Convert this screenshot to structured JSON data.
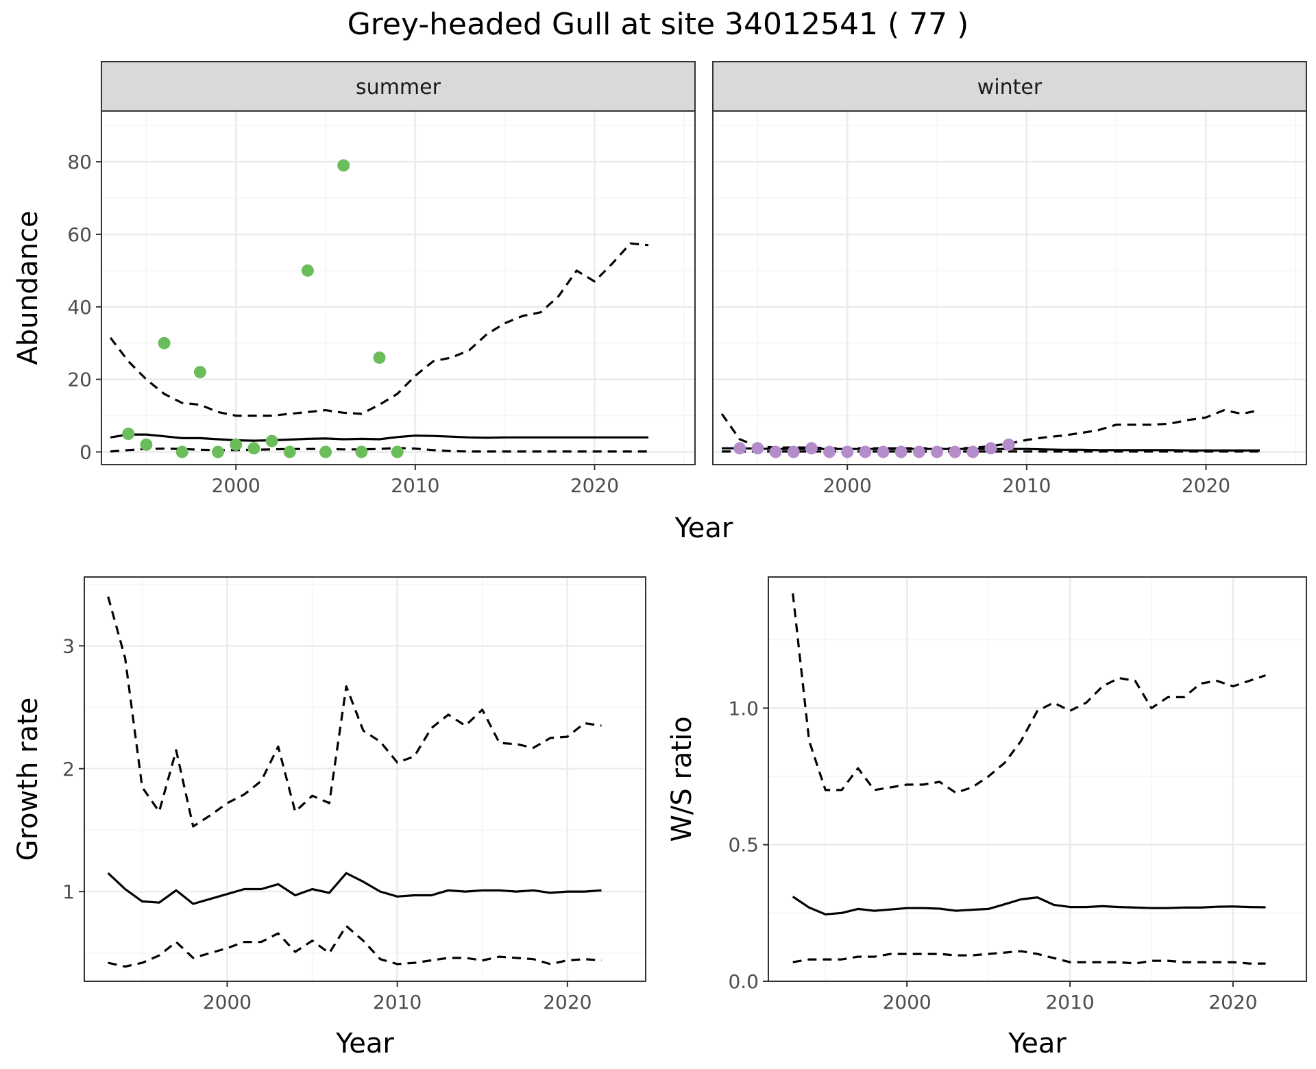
{
  "title": "Grey-headed Gull at site 34012541 ( 77 )",
  "colors": {
    "summer_points": "#6abd5a",
    "winter_points": "#b58cca",
    "line": "#000000",
    "strip_bg": "#d9d9d9",
    "grid_major": "#ebebeb",
    "grid_minor": "#f5f5f5"
  },
  "chart_data": [
    {
      "type": "line",
      "panel": "abundance",
      "facets": [
        "summer",
        "winter"
      ],
      "xlabel": "Year",
      "ylabel": "Abundance",
      "xlim": [
        1992.5,
        2025.6
      ],
      "ylim": [
        -3.5,
        94
      ],
      "x_ticks": [
        2000,
        2010,
        2020
      ],
      "y_ticks": [
        0,
        20,
        40,
        60,
        80
      ],
      "grid": true,
      "series": [
        {
          "facet": "summer",
          "style": "solid",
          "x": [
            1993,
            1994,
            1995,
            1996,
            1997,
            1998,
            1999,
            2000,
            2001,
            2002,
            2003,
            2004,
            2005,
            2006,
            2007,
            2008,
            2009,
            2010,
            2011,
            2012,
            2013,
            2014,
            2015,
            2016,
            2017,
            2018,
            2019,
            2020,
            2021,
            2022,
            2023
          ],
          "values": [
            4,
            4.8,
            4.8,
            4.3,
            3.8,
            3.8,
            3.5,
            3.2,
            3.1,
            3.2,
            3.4,
            3.6,
            3.7,
            3.5,
            3.6,
            3.5,
            4.1,
            4.5,
            4.4,
            4.2,
            4,
            3.9,
            4,
            4,
            4,
            4,
            4,
            4,
            4,
            4,
            4
          ]
        },
        {
          "facet": "summer",
          "style": "dashed",
          "x": [
            1993,
            1994,
            1995,
            1996,
            1997,
            1998,
            1999,
            2000,
            2001,
            2002,
            2003,
            2004,
            2005,
            2006,
            2007,
            2008,
            2009,
            2010,
            2011,
            2012,
            2013,
            2014,
            2015,
            2016,
            2017,
            2018,
            2019,
            2020,
            2021,
            2022,
            2023
          ],
          "values": [
            31.5,
            25,
            20,
            16,
            13.5,
            13,
            11,
            10,
            10,
            10,
            10.5,
            11,
            11.5,
            10.8,
            10.5,
            13,
            16,
            21,
            25,
            26,
            28,
            32.5,
            35.5,
            37.5,
            38.5,
            43,
            50,
            47,
            52,
            57.5,
            57
          ]
        },
        {
          "facet": "summer",
          "style": "dashed",
          "x": [
            1993,
            1994,
            1995,
            1996,
            1997,
            1998,
            1999,
            2000,
            2001,
            2002,
            2003,
            2004,
            2005,
            2006,
            2007,
            2008,
            2009,
            2010,
            2011,
            2012,
            2013,
            2014,
            2015,
            2016,
            2017,
            2018,
            2019,
            2020,
            2021,
            2022,
            2023
          ],
          "values": [
            0.1,
            0.5,
            0.8,
            0.9,
            0.8,
            0.6,
            0.5,
            0.5,
            0.6,
            0.7,
            0.8,
            0.8,
            0.8,
            0.7,
            0.7,
            0.8,
            1.1,
            0.9,
            0.5,
            0.2,
            0.1,
            0.1,
            0.1,
            0.1,
            0.1,
            0.1,
            0.1,
            0.1,
            0.1,
            0.1,
            0.1
          ]
        },
        {
          "facet": "summer",
          "style": "points",
          "x": [
            1994,
            1995,
            1996,
            1997,
            1998,
            1999,
            2000,
            2001,
            2002,
            2003,
            2004,
            2005,
            2006,
            2007,
            2008,
            2009
          ],
          "values": [
            5,
            2,
            30,
            0,
            22,
            0,
            2,
            1,
            3,
            0,
            50,
            0,
            79,
            0,
            26,
            0
          ]
        },
        {
          "facet": "winter",
          "style": "solid",
          "x": [
            1993,
            1994,
            1995,
            1996,
            1997,
            1998,
            1999,
            2000,
            2001,
            2002,
            2003,
            2004,
            2005,
            2006,
            2007,
            2008,
            2009,
            2010,
            2011,
            2012,
            2013,
            2014,
            2015,
            2016,
            2017,
            2018,
            2019,
            2020,
            2021,
            2022,
            2023
          ],
          "values": [
            1,
            1,
            0.9,
            0.8,
            0.8,
            0.8,
            0.8,
            0.8,
            0.8,
            0.8,
            0.8,
            0.8,
            0.8,
            0.8,
            0.8,
            0.8,
            0.8,
            0.8,
            0.7,
            0.6,
            0.6,
            0.5,
            0.5,
            0.5,
            0.5,
            0.5,
            0.4,
            0.4,
            0.4,
            0.4,
            0.4
          ]
        },
        {
          "facet": "winter",
          "style": "dashed",
          "x": [
            1993,
            1994,
            1995,
            1996,
            1997,
            1998,
            1999,
            2000,
            2001,
            2002,
            2003,
            2004,
            2005,
            2006,
            2007,
            2008,
            2009,
            2010,
            2011,
            2012,
            2013,
            2014,
            2015,
            2016,
            2017,
            2018,
            2019,
            2020,
            2021,
            2022,
            2023
          ],
          "values": [
            10.5,
            3.5,
            1.5,
            1.2,
            1.2,
            1.2,
            1,
            1,
            1,
            1,
            1,
            1,
            1,
            1,
            1.1,
            1.6,
            2.3,
            3.3,
            4,
            4.5,
            5.2,
            6,
            7.5,
            7.5,
            7.5,
            7.8,
            8.8,
            9.5,
            11.5,
            10.5,
            11.5
          ]
        },
        {
          "facet": "winter",
          "style": "dashed",
          "x": [
            1993,
            1994,
            1995,
            1996,
            1997,
            1998,
            1999,
            2000,
            2001,
            2002,
            2003,
            2004,
            2005,
            2006,
            2007,
            2008,
            2009,
            2010,
            2011,
            2012,
            2013,
            2014,
            2015,
            2016,
            2017,
            2018,
            2019,
            2020,
            2021,
            2022,
            2023
          ],
          "values": [
            0.1,
            0.1,
            0.1,
            0.1,
            0.1,
            0.1,
            0.1,
            0.1,
            0.1,
            0.1,
            0.1,
            0.1,
            0.1,
            0.1,
            0.1,
            0.1,
            0.1,
            0.1,
            0.1,
            0.1,
            0.1,
            0.1,
            0.1,
            0.1,
            0.1,
            0.1,
            0.1,
            0.1,
            0.1,
            0.1,
            0.1
          ]
        },
        {
          "facet": "winter",
          "style": "points",
          "x": [
            1994,
            1995,
            1996,
            1997,
            1998,
            1999,
            2000,
            2001,
            2002,
            2003,
            2004,
            2005,
            2006,
            2007,
            2008,
            2009
          ],
          "values": [
            1,
            1,
            0,
            0,
            1,
            0,
            0,
            0,
            0,
            0,
            0,
            0,
            0,
            0,
            1,
            2
          ]
        }
      ]
    },
    {
      "type": "line",
      "panel": "growth",
      "xlabel": "Year",
      "ylabel": "Growth rate",
      "xlim": [
        1991.6,
        2024.6
      ],
      "ylim": [
        0.27,
        3.56
      ],
      "x_ticks": [
        2000,
        2010,
        2020
      ],
      "y_ticks": [
        1,
        2,
        3
      ],
      "grid": true,
      "series": [
        {
          "style": "solid",
          "x": [
            1993,
            1994,
            1995,
            1996,
            1997,
            1998,
            1999,
            2000,
            2001,
            2002,
            2003,
            2004,
            2005,
            2006,
            2007,
            2008,
            2009,
            2010,
            2011,
            2012,
            2013,
            2014,
            2015,
            2016,
            2017,
            2018,
            2019,
            2020,
            2021,
            2022
          ],
          "values": [
            1.15,
            1.02,
            0.92,
            0.91,
            1.01,
            0.9,
            0.94,
            0.98,
            1.02,
            1.02,
            1.06,
            0.97,
            1.02,
            0.99,
            1.15,
            1.08,
            1,
            0.96,
            0.97,
            0.97,
            1.01,
            1,
            1.01,
            1.01,
            1,
            1.01,
            0.99,
            1,
            1,
            1.01
          ]
        },
        {
          "style": "dashed",
          "x": [
            1993,
            1994,
            1995,
            1996,
            1997,
            1998,
            1999,
            2000,
            2001,
            2002,
            2003,
            2004,
            2005,
            2006,
            2007,
            2008,
            2009,
            2010,
            2011,
            2012,
            2013,
            2014,
            2015,
            2016,
            2017,
            2018,
            2019,
            2020,
            2021,
            2022
          ],
          "values": [
            3.4,
            2.9,
            1.85,
            1.65,
            2.15,
            1.53,
            1.62,
            1.72,
            1.79,
            1.9,
            2.18,
            1.65,
            1.78,
            1.72,
            2.67,
            2.31,
            2.22,
            2.05,
            2.1,
            2.33,
            2.44,
            2.35,
            2.48,
            2.21,
            2.2,
            2.17,
            2.25,
            2.26,
            2.37,
            2.35
          ]
        },
        {
          "style": "dashed",
          "x": [
            1993,
            1994,
            1995,
            1996,
            1997,
            1998,
            1999,
            2000,
            2001,
            2002,
            2003,
            2004,
            2005,
            2006,
            2007,
            2008,
            2009,
            2010,
            2011,
            2012,
            2013,
            2014,
            2015,
            2016,
            2017,
            2018,
            2019,
            2020,
            2021,
            2022
          ],
          "values": [
            0.42,
            0.39,
            0.42,
            0.48,
            0.59,
            0.46,
            0.5,
            0.54,
            0.59,
            0.59,
            0.66,
            0.51,
            0.6,
            0.5,
            0.72,
            0.6,
            0.45,
            0.41,
            0.42,
            0.44,
            0.46,
            0.46,
            0.44,
            0.47,
            0.46,
            0.45,
            0.41,
            0.44,
            0.45,
            0.44
          ]
        }
      ]
    },
    {
      "type": "line",
      "panel": "ratio",
      "xlabel": "Year",
      "ylabel": "W/S ratio",
      "xlim": [
        1991.5,
        2024.5
      ],
      "ylim": [
        0,
        1.48
      ],
      "x_ticks": [
        2000,
        2010,
        2020
      ],
      "y_ticks": [
        0.0,
        0.5,
        1.0
      ],
      "y_tick_labels": [
        "0.0",
        "0.5",
        "1.0"
      ],
      "grid": true,
      "series": [
        {
          "style": "solid",
          "x": [
            1993,
            1994,
            1995,
            1996,
            1997,
            1998,
            1999,
            2000,
            2001,
            2002,
            2003,
            2004,
            2005,
            2006,
            2007,
            2008,
            2009,
            2010,
            2011,
            2012,
            2013,
            2014,
            2015,
            2016,
            2017,
            2018,
            2019,
            2020,
            2021,
            2022
          ],
          "values": [
            0.31,
            0.27,
            0.245,
            0.25,
            0.265,
            0.258,
            0.263,
            0.268,
            0.268,
            0.266,
            0.258,
            0.262,
            0.265,
            0.282,
            0.3,
            0.307,
            0.28,
            0.272,
            0.272,
            0.275,
            0.272,
            0.27,
            0.268,
            0.268,
            0.27,
            0.27,
            0.273,
            0.274,
            0.272,
            0.271
          ]
        },
        {
          "style": "dashed",
          "x": [
            1993,
            1994,
            1995,
            1996,
            1997,
            1998,
            1999,
            2000,
            2001,
            2002,
            2003,
            2004,
            2005,
            2006,
            2007,
            2008,
            2009,
            2010,
            2011,
            2012,
            2013,
            2014,
            2015,
            2016,
            2017,
            2018,
            2019,
            2020,
            2021,
            2022
          ],
          "values": [
            1.42,
            0.88,
            0.7,
            0.7,
            0.78,
            0.7,
            0.71,
            0.72,
            0.72,
            0.73,
            0.69,
            0.71,
            0.75,
            0.8,
            0.88,
            0.99,
            1.02,
            0.99,
            1.02,
            1.08,
            1.11,
            1.1,
            1,
            1.04,
            1.04,
            1.09,
            1.1,
            1.08,
            1.1,
            1.12
          ]
        },
        {
          "style": "dashed",
          "x": [
            1993,
            1994,
            1995,
            1996,
            1997,
            1998,
            1999,
            2000,
            2001,
            2002,
            2003,
            2004,
            2005,
            2006,
            2007,
            2008,
            2009,
            2010,
            2011,
            2012,
            2013,
            2014,
            2015,
            2016,
            2017,
            2018,
            2019,
            2020,
            2021,
            2022
          ],
          "values": [
            0.07,
            0.08,
            0.08,
            0.08,
            0.09,
            0.09,
            0.1,
            0.1,
            0.1,
            0.1,
            0.095,
            0.095,
            0.1,
            0.105,
            0.11,
            0.1,
            0.085,
            0.07,
            0.07,
            0.07,
            0.07,
            0.065,
            0.075,
            0.075,
            0.07,
            0.07,
            0.07,
            0.07,
            0.065,
            0.065
          ]
        }
      ]
    }
  ]
}
